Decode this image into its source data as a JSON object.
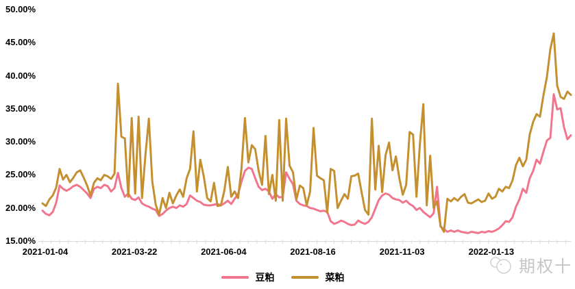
{
  "chart_data": {
    "type": "line",
    "title": "",
    "xlabel": "",
    "ylabel": "",
    "grid": false,
    "legend_position": "bottom",
    "y_axis": {
      "min": 15,
      "max": 50,
      "step": 5,
      "tick_labels": [
        "15.00%",
        "20.00%",
        "25.00%",
        "30.00%",
        "35.00%",
        "40.00%",
        "45.00%",
        "50.00%"
      ]
    },
    "x_axis": {
      "tick_labels": [
        "2021-01-04",
        "2021-03-22",
        "2021-06-04",
        "2021-08-16",
        "2021-11-03",
        "2022-01-13"
      ],
      "label_day_positions": [
        0,
        52,
        104,
        156,
        208,
        260
      ],
      "total_days": 308,
      "minor_tick_every_days": 5
    },
    "series": [
      {
        "name": "豆粕",
        "color": "#f0758d",
        "values": [
          19.6,
          19.1,
          18.9,
          19.4,
          20.8,
          23.4,
          22.9,
          22.6,
          22.9,
          23.3,
          23.5,
          23.2,
          22.7,
          22.2,
          21.5,
          22.9,
          23.2,
          23.0,
          23.5,
          23.3,
          22.5,
          23.0,
          25.3,
          23.0,
          21.7,
          22.2,
          21.4,
          21.2,
          21.6,
          20.7,
          20.4,
          20.2,
          19.9,
          19.7,
          18.8,
          19.1,
          19.6,
          20.0,
          20.2,
          20.0,
          20.4,
          20.2,
          20.6,
          21.9,
          21.5,
          21.1,
          20.9,
          20.5,
          20.4,
          20.4,
          20.5,
          20.6,
          20.4,
          20.7,
          21.1,
          20.6,
          21.4,
          22.1,
          24.0,
          25.6,
          26.1,
          25.9,
          24.5,
          23.2,
          22.7,
          22.9,
          22.5,
          21.4,
          22.1,
          21.6,
          21.7,
          25.4,
          24.4,
          23.6,
          21.1,
          20.6,
          20.4,
          20.3,
          20.0,
          19.9,
          19.7,
          19.5,
          19.6,
          19.4,
          18.0,
          17.6,
          17.8,
          18.1,
          17.9,
          17.6,
          17.4,
          17.5,
          18.1,
          17.8,
          17.6,
          17.9,
          18.6,
          19.9,
          21.2,
          21.9,
          22.2,
          22.0,
          21.5,
          21.3,
          21.2,
          20.8,
          21.1,
          20.6,
          20.3,
          19.7,
          20.0,
          19.4,
          19.0,
          18.6,
          19.2,
          23.2,
          17.2,
          16.8,
          16.4,
          16.6,
          16.4,
          16.6,
          16.4,
          16.3,
          16.2,
          16.4,
          16.3,
          16.2,
          16.4,
          16.3,
          16.5,
          16.4,
          16.6,
          16.9,
          17.4,
          18.0,
          17.9,
          18.6,
          20.2,
          21.3,
          22.9,
          22.3,
          24.5,
          25.6,
          27.3,
          26.7,
          28.5,
          30.2,
          30.6,
          37.2,
          34.9,
          35.1,
          32.2,
          30.4,
          31.0
        ]
      },
      {
        "name": "菜粕",
        "color": "#c4902f",
        "values": [
          20.7,
          20.3,
          21.3,
          21.9,
          23.1,
          25.9,
          24.3,
          25.0,
          23.9,
          24.6,
          25.4,
          25.7,
          24.6,
          23.4,
          21.9,
          23.8,
          24.5,
          24.2,
          25.0,
          24.8,
          24.4,
          25.2,
          38.8,
          30.8,
          30.5,
          21.7,
          33.6,
          22.2,
          33.8,
          21.5,
          28.0,
          33.5,
          24.0,
          20.5,
          19.0,
          21.5,
          20.0,
          22.3,
          20.7,
          21.9,
          22.8,
          21.7,
          24.5,
          25.9,
          31.6,
          22.5,
          27.3,
          24.8,
          21.5,
          21.0,
          23.8,
          20.3,
          20.4,
          22.6,
          26.2,
          21.7,
          22.5,
          21.5,
          26.0,
          33.6,
          26.9,
          29.5,
          28.9,
          25.6,
          23.5,
          30.9,
          22.1,
          25.0,
          21.1,
          33.3,
          21.1,
          33.5,
          26.4,
          25.4,
          21.3,
          23.4,
          23.0,
          20.4,
          22.5,
          32.1,
          24.9,
          24.5,
          24.2,
          19.3,
          25.9,
          25.6,
          20.0,
          21.1,
          22.1,
          21.4,
          24.8,
          24.9,
          25.2,
          22.4,
          19.7,
          19.0,
          33.5,
          22.8,
          29.4,
          22.4,
          28.0,
          29.9,
          25.7,
          27.8,
          24.5,
          22.0,
          23.5,
          31.5,
          31.1,
          21.7,
          29.7,
          35.7,
          20.4,
          27.9,
          20.0,
          21.0,
          17.3,
          16.4,
          21.4,
          21.0,
          21.5,
          21.1,
          21.7,
          22.1,
          20.8,
          20.7,
          21.0,
          21.3,
          20.9,
          21.1,
          22.2,
          21.4,
          21.7,
          22.9,
          22.5,
          23.2,
          23.0,
          24.2,
          26.5,
          27.6,
          26.3,
          27.3,
          31.1,
          33.0,
          34.2,
          33.8,
          37.0,
          39.8,
          44.0,
          46.4,
          38.5,
          36.8,
          36.5,
          37.6,
          37.1
        ]
      }
    ]
  },
  "watermark": {
    "text": "期权十"
  },
  "colors": {
    "axis_line": "#d9d9d9",
    "tick": "#d9d9d9",
    "label_text": "#000000",
    "watermark_text": "#bcbcbc",
    "background": "#ffffff"
  }
}
